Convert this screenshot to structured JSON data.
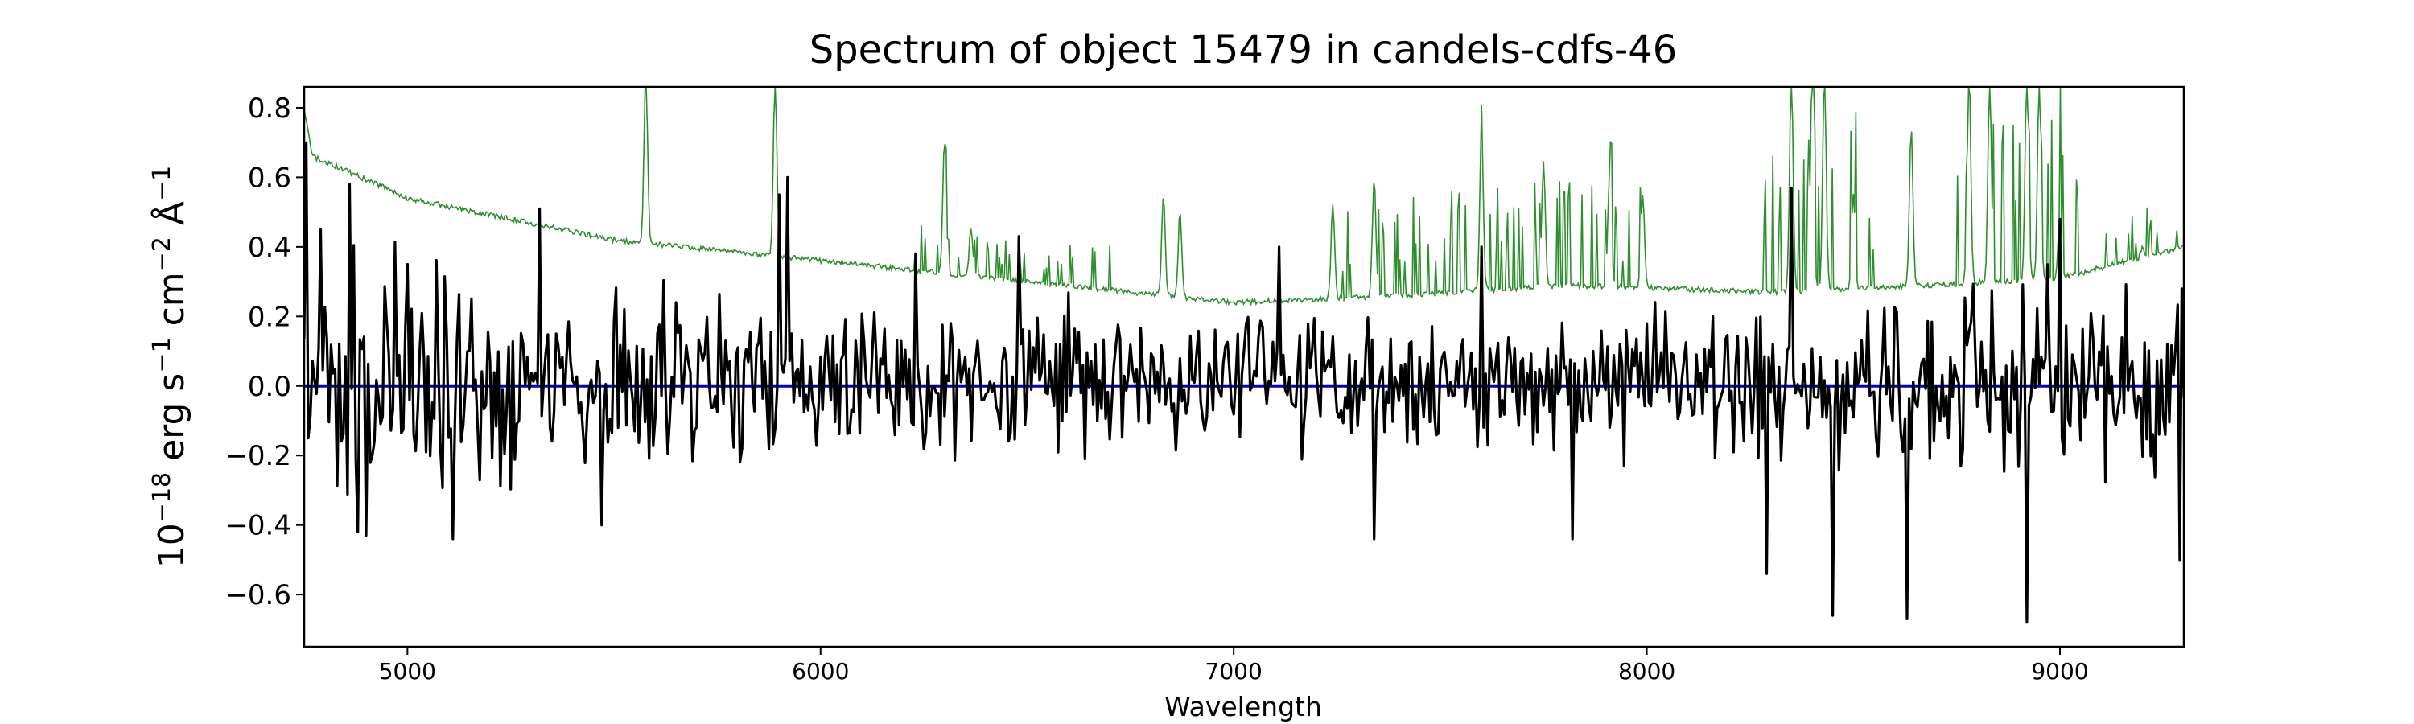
{
  "chart_data": {
    "type": "line",
    "title": "Spectrum of object 15479 in candels-cdfs-46",
    "xlabel": "Wavelength",
    "ylabel": {
      "base": "10",
      "exp1": "−18",
      "unit1": " erg s",
      "exp2": "−1",
      "unit2": " cm",
      "exp3": "−2",
      "unit3": " Å",
      "exp4": "−1"
    },
    "xlim": [
      4750,
      9300
    ],
    "ylim": [
      -0.75,
      0.86
    ],
    "x_ticks": [
      5000,
      6000,
      7000,
      8000,
      9000
    ],
    "x_tick_labels": [
      "5000",
      "6000",
      "7000",
      "8000",
      "9000"
    ],
    "y_ticks": [
      -0.6,
      -0.4,
      -0.2,
      0.0,
      0.2,
      0.4,
      0.6,
      0.8
    ],
    "y_tick_labels": [
      "−0.6",
      "−0.4",
      "−0.2",
      "0.0",
      "0.2",
      "0.4",
      "0.6",
      "0.8"
    ],
    "grid": false,
    "series": [
      {
        "role": "flux",
        "color": "#000000",
        "generated": true,
        "x_range": [
          4750,
          9300
        ],
        "step": 5,
        "amplitude_profile": [
          [
            4750,
            0.26
          ],
          [
            5300,
            0.2
          ],
          [
            6000,
            0.16
          ],
          [
            7000,
            0.12
          ],
          [
            8000,
            0.14
          ],
          [
            9300,
            0.2
          ]
        ],
        "spikes": [
          [
            4755,
            0.7
          ],
          [
            4760,
            -0.15
          ],
          [
            4790,
            0.45
          ],
          [
            4860,
            0.58
          ],
          [
            4880,
            -0.42
          ],
          [
            4900,
            -0.43
          ],
          [
            5000,
            0.35
          ],
          [
            5110,
            -0.44
          ],
          [
            5320,
            0.51
          ],
          [
            5470,
            -0.4
          ],
          [
            5900,
            0.55
          ],
          [
            5920,
            0.6
          ],
          [
            6230,
            0.38
          ],
          [
            6480,
            0.43
          ],
          [
            6640,
            -0.21
          ],
          [
            7110,
            0.4
          ],
          [
            7340,
            -0.44
          ],
          [
            7600,
            0.4
          ],
          [
            7820,
            -0.44
          ],
          [
            8290,
            -0.54
          ],
          [
            8350,
            0.57
          ],
          [
            8450,
            -0.66
          ],
          [
            8630,
            -0.67
          ],
          [
            8920,
            -0.68
          ],
          [
            9000,
            0.48
          ],
          [
            9290,
            -0.5
          ]
        ]
      },
      {
        "role": "error",
        "color": "#2f8f2f",
        "generated": true,
        "continuum": [
          [
            4750,
            0.8
          ],
          [
            4770,
            0.66
          ],
          [
            4850,
            0.62
          ],
          [
            5000,
            0.54
          ],
          [
            5500,
            0.42
          ],
          [
            6000,
            0.36
          ],
          [
            6500,
            0.3
          ],
          [
            7000,
            0.24
          ],
          [
            7400,
            0.26
          ],
          [
            7800,
            0.29
          ],
          [
            8300,
            0.27
          ],
          [
            8700,
            0.29
          ],
          [
            9000,
            0.31
          ],
          [
            9300,
            0.4
          ]
        ],
        "lines": [
          [
            5577,
            0.9
          ],
          [
            5890,
            0.88
          ],
          [
            6300,
            0.7
          ],
          [
            6364,
            0.45
          ],
          [
            6830,
            0.55
          ],
          [
            6870,
            0.5
          ],
          [
            7240,
            0.52
          ],
          [
            7340,
            0.6
          ],
          [
            7600,
            0.73
          ],
          [
            7750,
            0.65
          ],
          [
            7910,
            0.62
          ],
          [
            7990,
            0.55
          ],
          [
            8350,
            0.9
          ],
          [
            8400,
            0.88
          ],
          [
            8430,
            0.9
          ],
          [
            8500,
            0.55
          ],
          [
            8640,
            0.74
          ],
          [
            8780,
            0.9
          ],
          [
            8830,
            0.88
          ],
          [
            8920,
            0.9
          ],
          [
            8950,
            0.88
          ],
          [
            9000,
            0.5
          ],
          [
            9200,
            0.4
          ]
        ],
        "forest_regions": [
          [
            6200,
            6700,
            0.12
          ],
          [
            7250,
            8000,
            0.25
          ],
          [
            8280,
            8550,
            0.35
          ],
          [
            8750,
            9050,
            0.4
          ],
          [
            9100,
            9300,
            0.12
          ]
        ]
      },
      {
        "role": "zero",
        "color": "#0000cc",
        "x": [
          4750,
          9300
        ],
        "y": [
          0.0,
          0.0
        ]
      }
    ]
  }
}
